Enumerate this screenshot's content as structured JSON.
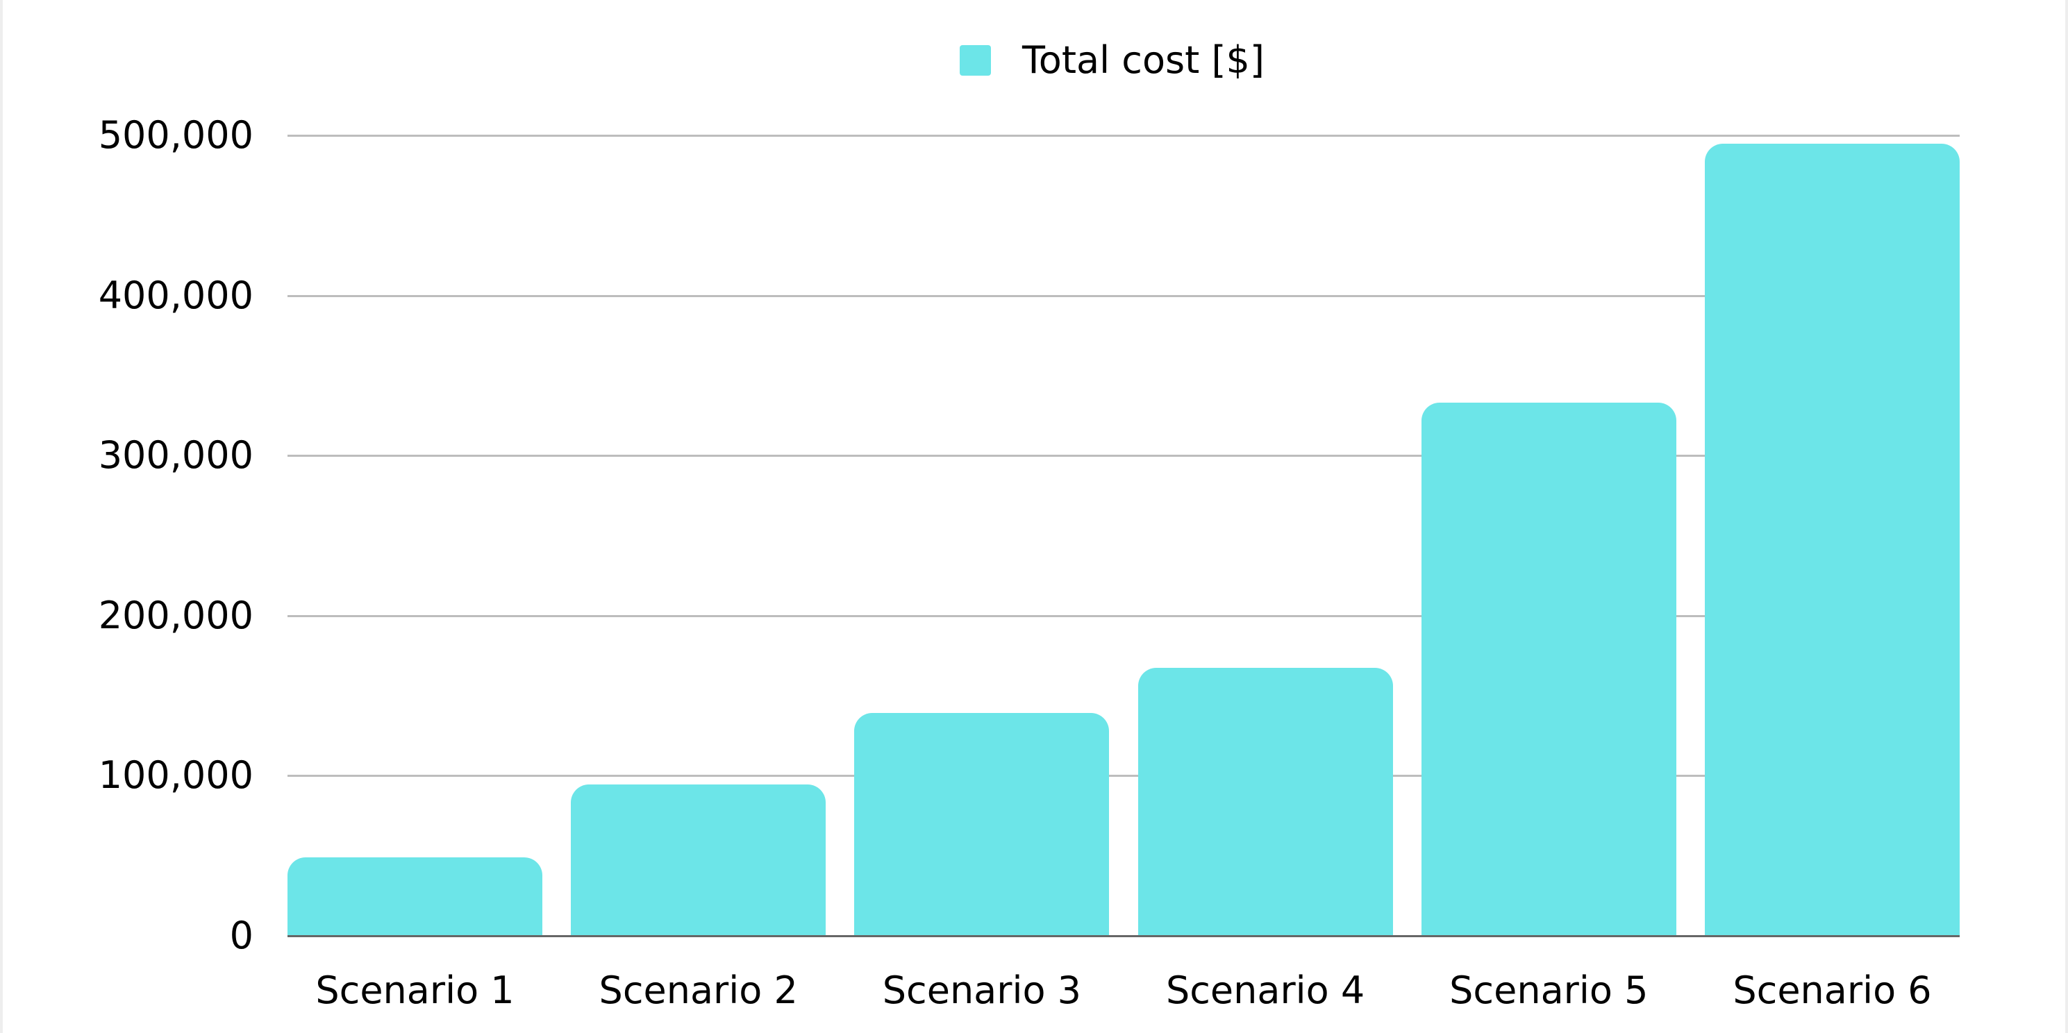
{
  "chart_data": {
    "type": "bar",
    "title": "",
    "xlabel": "",
    "ylabel": "",
    "categories": [
      "Scenario 1",
      "Scenario 2",
      "Scenario 3",
      "Scenario 4",
      "Scenario 5",
      "Scenario 6"
    ],
    "series": [
      {
        "name": "Total cost [$]",
        "color": "#6ce5e8",
        "values": [
          49000,
          94500,
          139000,
          167500,
          333000,
          495000
        ]
      }
    ],
    "ylim": [
      0,
      500000
    ],
    "yticks": [
      0,
      100000,
      200000,
      300000,
      400000,
      500000
    ],
    "ytick_labels": [
      "0",
      "100,000",
      "200,000",
      "300,000",
      "400,000",
      "500,000"
    ],
    "grid": true,
    "legend_position": "top"
  },
  "legend": {
    "label": "Total cost [$]",
    "color": "#6ce5e8"
  },
  "colors": {
    "bar": "#6ce5e8",
    "gridline": "#bdbdbd",
    "baseline": "#666666",
    "background": "#ffffff"
  }
}
